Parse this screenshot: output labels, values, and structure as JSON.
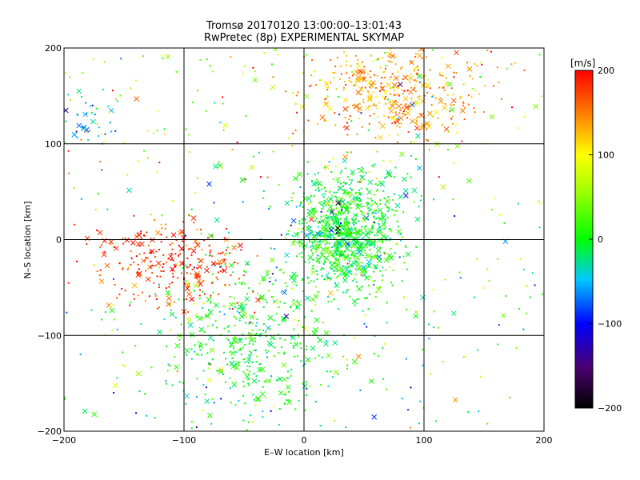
{
  "chart_data": {
    "type": "scatter",
    "title": "Tromsø 20170120 13:00:00–13:01:43",
    "subtitle": "RwPretec (8p) EXPERIMENTAL SKYMAP",
    "xlabel": "E–W location [km]",
    "ylabel": "N–S location [km]",
    "xlim": [
      -200,
      200
    ],
    "ylim": [
      -200,
      200
    ],
    "xticks": [
      -200,
      -100,
      0,
      100,
      200
    ],
    "yticks": [
      -200,
      -100,
      0,
      100,
      200
    ],
    "grid": true,
    "colorbar": {
      "label": "[m/s]",
      "range": [
        -200,
        200
      ],
      "ticks": [
        200,
        100,
        0,
        -100,
        -200
      ]
    },
    "markers": [
      "dot",
      "x"
    ],
    "clusters": [
      {
        "region": "center-east",
        "x": [
          0,
          70
        ],
        "y": [
          -40,
          60
        ],
        "value": 0,
        "density": "very high"
      },
      {
        "region": "south-center",
        "x": [
          -100,
          20
        ],
        "y": [
          -170,
          -30
        ],
        "value": 0,
        "density": "high"
      },
      {
        "region": "north-east",
        "x": [
          20,
          130
        ],
        "y": [
          110,
          200
        ],
        "value": 140,
        "density": "high"
      },
      {
        "region": "west",
        "x": [
          -160,
          -60
        ],
        "y": [
          -60,
          10
        ],
        "value": 180,
        "density": "medium"
      },
      {
        "region": "far north-west",
        "x": [
          -200,
          -160
        ],
        "y": [
          100,
          150
        ],
        "value": -60,
        "density": "low"
      }
    ]
  }
}
